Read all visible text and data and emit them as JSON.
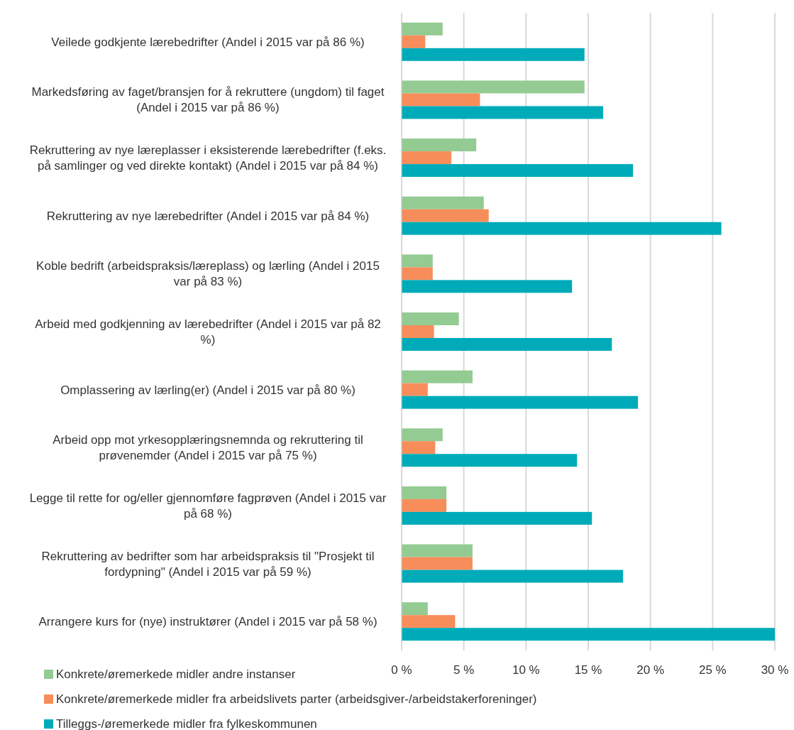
{
  "chart_data": {
    "type": "bar",
    "orientation": "horizontal",
    "categories": [
      "Veilede godkjente lærebedrifter (Andel i 2015 var på 86 %)",
      "Markedsføring av faget/bransjen for å rekruttere (ungdom) til faget (Andel i 2015 var på 86 %)",
      "Rekruttering av nye læreplasser i eksisterende lærebedrifter (f.eks. på samlinger og ved direkte kontakt) (Andel i 2015 var på 84 %)",
      "Rekruttering av nye lærebedrifter (Andel i 2015 var på 84 %)",
      "Koble bedrift (arbeidspraksis/læreplass) og lærling (Andel i 2015 var på 83 %)",
      "Arbeid med godkjenning av lærebedrifter (Andel i 2015 var på 82 %)",
      "Omplassering av lærling(er) (Andel i 2015 var på 80 %)",
      "Arbeid opp mot yrkesopplæringsnemnda og rekruttering til prøvenemder (Andel i 2015 var på 75 %)",
      "Legge til rette for og/eller gjennomføre fagprøven (Andel i 2015 var på 68 %)",
      "Rekruttering av bedrifter som har arbeidspraksis til \"Prosjekt til fordypning\" (Andel i 2015 var på 59 %)",
      "Arrangere kurs for (nye) instruktører (Andel i 2015 var på 58 %)"
    ],
    "series": [
      {
        "name": "Konkrete/øremerkede midler andre instanser",
        "color": "#93cb92",
        "values": [
          3.3,
          14.7,
          6.0,
          6.6,
          2.5,
          4.6,
          5.7,
          3.3,
          3.6,
          5.7,
          2.1
        ]
      },
      {
        "name": "Konkrete/øremerkede midler fra arbeidslivets parter (arbeidsgiver-/arbeidstakerforeninger)",
        "color": "#f68d5a",
        "values": [
          1.9,
          6.3,
          4.0,
          7.0,
          2.5,
          2.6,
          2.1,
          2.7,
          3.6,
          5.7,
          4.3
        ]
      },
      {
        "name": "Tilleggs-/øremerkede midler fra fylkeskommunen",
        "color": "#00abb9",
        "values": [
          14.7,
          16.2,
          18.6,
          25.7,
          13.7,
          16.9,
          19.0,
          14.1,
          15.3,
          17.8,
          30.0
        ]
      }
    ],
    "xlim": [
      0,
      30
    ],
    "xticks": [
      {
        "value": 0,
        "label": "0 %"
      },
      {
        "value": 5,
        "label": "5 %"
      },
      {
        "value": 10,
        "label": "10 %"
      },
      {
        "value": 15,
        "label": "15 %"
      },
      {
        "value": 20,
        "label": "20 %"
      },
      {
        "value": 25,
        "label": "25 %"
      },
      {
        "value": 30,
        "label": "30 %"
      }
    ],
    "grid": "x",
    "legend": "bottom"
  }
}
